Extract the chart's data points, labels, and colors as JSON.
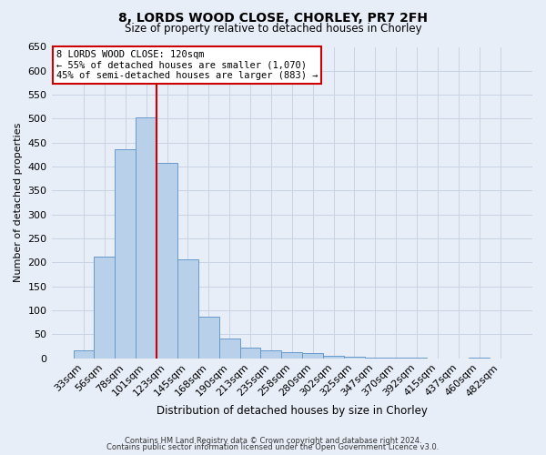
{
  "title": "8, LORDS WOOD CLOSE, CHORLEY, PR7 2FH",
  "subtitle": "Size of property relative to detached houses in Chorley",
  "xlabel": "Distribution of detached houses by size in Chorley",
  "ylabel": "Number of detached properties",
  "bar_labels": [
    "33sqm",
    "56sqm",
    "78sqm",
    "101sqm",
    "123sqm",
    "145sqm",
    "168sqm",
    "190sqm",
    "213sqm",
    "235sqm",
    "258sqm",
    "280sqm",
    "302sqm",
    "325sqm",
    "347sqm",
    "370sqm",
    "392sqm",
    "415sqm",
    "437sqm",
    "460sqm",
    "482sqm"
  ],
  "bar_values": [
    17,
    213,
    437,
    503,
    408,
    207,
    87,
    41,
    22,
    17,
    12,
    10,
    5,
    3,
    2,
    1,
    1,
    0,
    0,
    1,
    0
  ],
  "bar_color": "#b8d0ea",
  "bar_edgecolor": "#6699cc",
  "vline_x_idx": 4,
  "vline_color": "#cc0000",
  "annotation_title": "8 LORDS WOOD CLOSE: 120sqm",
  "annotation_line1": "← 55% of detached houses are smaller (1,070)",
  "annotation_line2": "45% of semi-detached houses are larger (883) →",
  "annotation_box_edgecolor": "#cc0000",
  "annotation_box_facecolor": "#ffffff",
  "ylim": [
    0,
    650
  ],
  "yticks": [
    0,
    50,
    100,
    150,
    200,
    250,
    300,
    350,
    400,
    450,
    500,
    550,
    600,
    650
  ],
  "grid_color": "#c8d4e4",
  "bg_color": "#e8eef8",
  "footer1": "Contains HM Land Registry data © Crown copyright and database right 2024.",
  "footer2": "Contains public sector information licensed under the Open Government Licence v3.0."
}
